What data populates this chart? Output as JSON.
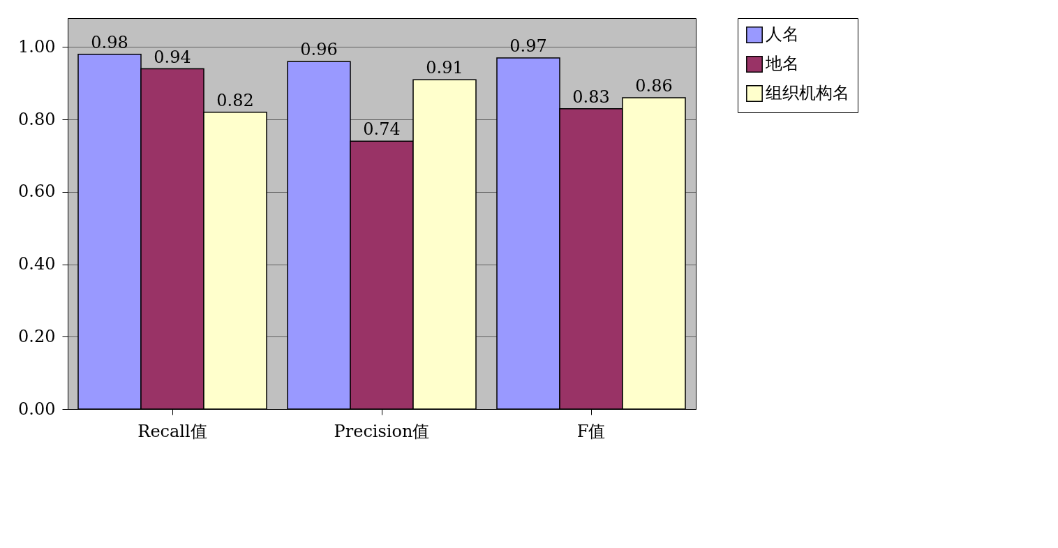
{
  "chart_data": {
    "type": "bar",
    "categories": [
      "Recall值",
      "Precision值",
      "F值"
    ],
    "series": [
      {
        "name": "人名",
        "color": "#9999ff",
        "values": [
          0.98,
          0.96,
          0.97
        ]
      },
      {
        "name": "地名",
        "color": "#993366",
        "values": [
          0.94,
          0.74,
          0.83
        ]
      },
      {
        "name": "组织机构名",
        "color": "#ffffcc",
        "values": [
          0.82,
          0.91,
          0.86
        ]
      }
    ],
    "ylim": [
      0,
      1.08
    ],
    "yticks": [
      {
        "value": 0,
        "label": "0.00"
      },
      {
        "value": 0.2,
        "label": "0.20"
      },
      {
        "value": 0.4,
        "label": "0.40"
      },
      {
        "value": 0.6,
        "label": "0.60"
      },
      {
        "value": 0.8,
        "label": "0.80"
      },
      {
        "value": 1,
        "label": "1.00"
      }
    ],
    "grid": "y",
    "legend": "right",
    "data_labels": true
  }
}
